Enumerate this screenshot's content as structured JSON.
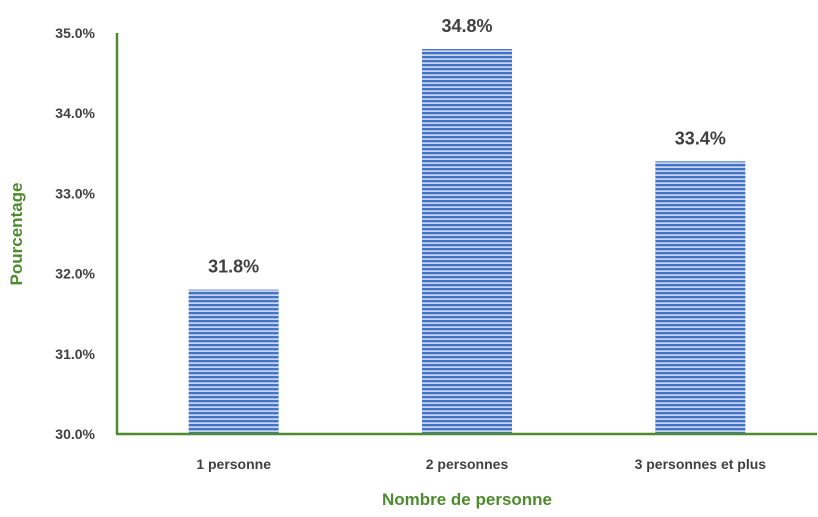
{
  "chart_data": {
    "type": "bar",
    "categories": [
      "1 personne",
      "2 personnes",
      "3 personnes et plus"
    ],
    "values": [
      31.8,
      34.8,
      33.4
    ],
    "data_labels": [
      "31.8%",
      "34.8%",
      "33.4%"
    ],
    "title": "",
    "xlabel": "Nombre de personne",
    "ylabel": "Pourcentage",
    "ylim": [
      30.0,
      35.0
    ],
    "y_ticks": [
      "30.0%",
      "31.0%",
      "32.0%",
      "33.0%",
      "34.0%",
      "35.0%"
    ],
    "grid": false,
    "legend": "none",
    "colors": {
      "bar_fill": "#4472c4",
      "bar_stripe": "#c9d6f0",
      "axis": "#4e8a2e",
      "axis_title": "#4e8a2e",
      "text": "#404040"
    }
  }
}
